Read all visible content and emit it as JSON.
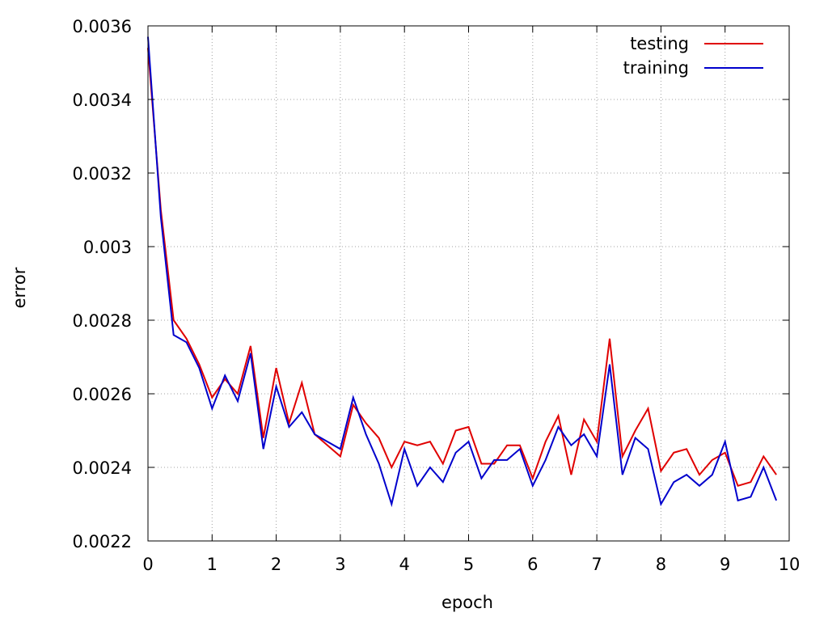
{
  "chart_data": {
    "type": "line",
    "title": "",
    "xlabel": "epoch",
    "ylabel": "error",
    "xlim": [
      0,
      10
    ],
    "ylim": [
      0.0022,
      0.0036
    ],
    "x_ticks": [
      0,
      1,
      2,
      3,
      4,
      5,
      6,
      7,
      8,
      9,
      10
    ],
    "x_tick_labels": [
      "0",
      "1",
      "2",
      "3",
      "4",
      "5",
      "6",
      "7",
      "8",
      "9",
      "10"
    ],
    "y_ticks": [
      0.0022,
      0.0024,
      0.0026,
      0.0028,
      0.003,
      0.0032,
      0.0034,
      0.0036
    ],
    "y_tick_labels": [
      "0.0022",
      "0.0024",
      "0.0026",
      "0.0028",
      "0.003",
      "0.0032",
      "0.0034",
      "0.0036"
    ],
    "grid": true,
    "legend_position": "top-right",
    "series": [
      {
        "name": "testing",
        "color": "#e00000",
        "x": [
          0,
          0.2,
          0.4,
          0.6,
          0.8,
          1.0,
          1.2,
          1.4,
          1.6,
          1.8,
          2.0,
          2.2,
          2.4,
          2.6,
          2.8,
          3.0,
          3.2,
          3.4,
          3.6,
          3.8,
          4.0,
          4.2,
          4.4,
          4.6,
          4.8,
          5.0,
          5.2,
          5.4,
          5.6,
          5.8,
          6.0,
          6.2,
          6.4,
          6.6,
          6.8,
          7.0,
          7.2,
          7.4,
          7.6,
          7.8,
          8.0,
          8.2,
          8.4,
          8.6,
          8.8,
          9.0,
          9.2,
          9.4,
          9.6,
          9.8
        ],
        "values": [
          0.00354,
          0.0031,
          0.0028,
          0.00275,
          0.00268,
          0.00259,
          0.00264,
          0.0026,
          0.00273,
          0.00248,
          0.00267,
          0.00252,
          0.00263,
          0.00249,
          0.00246,
          0.00243,
          0.00257,
          0.00252,
          0.00248,
          0.0024,
          0.00247,
          0.00246,
          0.00247,
          0.00241,
          0.0025,
          0.00251,
          0.00241,
          0.00241,
          0.00246,
          0.00246,
          0.00237,
          0.00247,
          0.00254,
          0.00238,
          0.00253,
          0.00247,
          0.00275,
          0.00243,
          0.0025,
          0.00256,
          0.00239,
          0.00244,
          0.00245,
          0.00238,
          0.00242,
          0.00244,
          0.00235,
          0.00236,
          0.00243,
          0.00238
        ]
      },
      {
        "name": "training",
        "color": "#0000cc",
        "x": [
          0,
          0.2,
          0.4,
          0.6,
          0.8,
          1.0,
          1.2,
          1.4,
          1.6,
          1.8,
          2.0,
          2.2,
          2.4,
          2.6,
          2.8,
          3.0,
          3.2,
          3.4,
          3.6,
          3.8,
          4.0,
          4.2,
          4.4,
          4.6,
          4.8,
          5.0,
          5.2,
          5.4,
          5.6,
          5.8,
          6.0,
          6.2,
          6.4,
          6.6,
          6.8,
          7.0,
          7.2,
          7.4,
          7.6,
          7.8,
          8.0,
          8.2,
          8.4,
          8.6,
          8.8,
          9.0,
          9.2,
          9.4,
          9.6,
          9.8
        ],
        "values": [
          0.00357,
          0.00308,
          0.00276,
          0.00274,
          0.00267,
          0.00256,
          0.00265,
          0.00258,
          0.00271,
          0.00245,
          0.00262,
          0.00251,
          0.00255,
          0.00249,
          0.00247,
          0.00245,
          0.00259,
          0.00249,
          0.00241,
          0.0023,
          0.00245,
          0.00235,
          0.0024,
          0.00236,
          0.00244,
          0.00247,
          0.00237,
          0.00242,
          0.00242,
          0.00245,
          0.00235,
          0.00242,
          0.00251,
          0.00246,
          0.00249,
          0.00243,
          0.00268,
          0.00238,
          0.00248,
          0.00245,
          0.0023,
          0.00236,
          0.00238,
          0.00235,
          0.00238,
          0.00247,
          0.00231,
          0.00232,
          0.0024,
          0.00231
        ]
      }
    ]
  }
}
